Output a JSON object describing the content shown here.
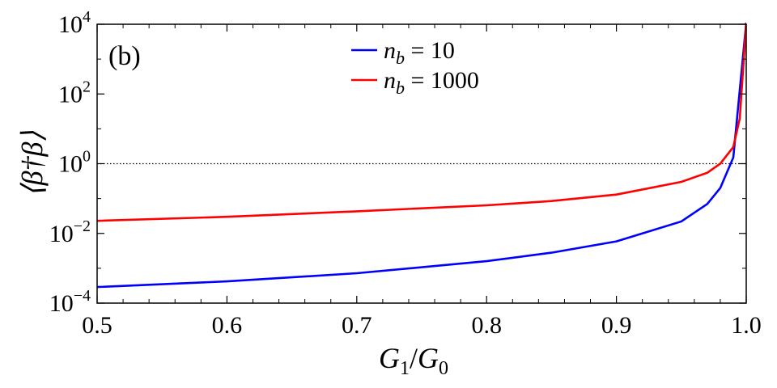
{
  "chart_data": {
    "type": "line",
    "panel_label": "(b)",
    "xlabel": "G1/G0",
    "xlabel_parts": {
      "main1": "G",
      "sub1": "1",
      "slash": "/",
      "main2": "G",
      "sub2": "0"
    },
    "ylabel": "⟨β†β⟩",
    "xlim": [
      0.5,
      1.0
    ],
    "ylim": [
      -4,
      4
    ],
    "yscale": "log",
    "x_ticks": [
      0.5,
      0.6,
      0.7,
      0.8,
      0.9,
      1.0
    ],
    "x_tick_labels": [
      "0.5",
      "0.6",
      "0.7",
      "0.8",
      "0.9",
      "1.0"
    ],
    "y_tick_exponents": [
      -4,
      -2,
      0,
      2,
      4
    ],
    "y_tick_base": "10",
    "reference_line": {
      "y": 1,
      "style": "dotted"
    },
    "legend_position": "top-center",
    "series": [
      {
        "name": "n_b = 10",
        "legend": {
          "var": "n",
          "sub": "b",
          "eq": "= 10"
        },
        "color": "#0000ff",
        "x": [
          0.5,
          0.6,
          0.7,
          0.8,
          0.85,
          0.9,
          0.95,
          0.97,
          0.98,
          0.99
        ],
        "y": [
          0.00029,
          0.00042,
          0.00072,
          0.0016,
          0.0028,
          0.0059,
          0.022,
          0.07,
          0.2,
          1.5
        ]
      },
      {
        "name": "n_b = 1000",
        "legend": {
          "var": "n",
          "sub": "b",
          "eq": "= 1000"
        },
        "color": "#ff0000",
        "x": [
          0.5,
          0.6,
          0.7,
          0.8,
          0.85,
          0.9,
          0.95,
          0.97,
          0.98,
          0.99,
          0.995
        ],
        "y": [
          0.023,
          0.03,
          0.043,
          0.064,
          0.085,
          0.13,
          0.3,
          0.55,
          1.0,
          3.0,
          20
        ]
      }
    ]
  }
}
